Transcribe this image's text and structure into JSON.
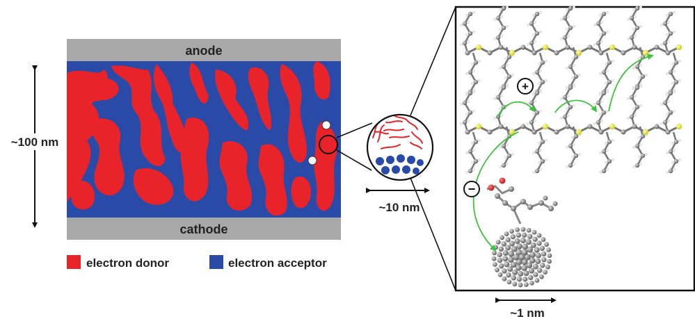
{
  "device": {
    "anode_label": "anode",
    "cathode_label": "cathode",
    "thickness_label": "~100 nm",
    "colors": {
      "donor": "#e8242a",
      "acceptor": "#2a4aa8",
      "electrode": "#a8a8a8"
    }
  },
  "zoom_circle": {
    "scale_label": "~10 nm"
  },
  "molecular_panel": {
    "scale_label": "~1 nm",
    "hole_symbol": "+",
    "electron_symbol": "−",
    "colors": {
      "carbon": "#808080",
      "sulfur": "#e8e83a",
      "oxygen": "#d42020",
      "hydrogen": "#f2f2f2",
      "arrow": "#3cc43c"
    }
  },
  "legend": {
    "donor_label": "electron donor",
    "acceptor_label": "electron acceptor"
  }
}
